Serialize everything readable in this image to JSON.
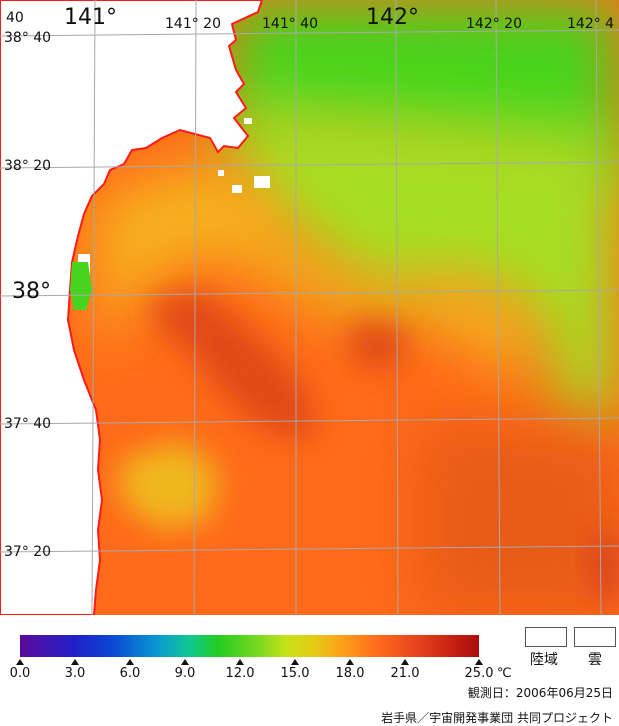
{
  "map": {
    "lon_labels": [
      {
        "text": "141°"
      },
      {
        "text": "141° 20"
      },
      {
        "text": "141° 40"
      },
      {
        "text": "142°"
      },
      {
        "text": "142° 20"
      },
      {
        "text": "142° 4"
      }
    ],
    "lat_labels": [
      {
        "text": "38° 40"
      },
      {
        "text": "38° 20"
      },
      {
        "text": "38°"
      },
      {
        "text": "37° 40"
      },
      {
        "text": "37° 20"
      }
    ],
    "corner_label": "40",
    "colors": {
      "land": "#ffffff",
      "coast": "#ff1a1a",
      "grid": "#a8a8a8",
      "warm": "#ff6a1a",
      "hot": "#e04a14",
      "mid": "#f6b41a",
      "cool": "#a6de24",
      "cold": "#46d41e"
    }
  },
  "legend": {
    "ticks": [
      "0.0",
      "3.0",
      "6.0",
      "9.0",
      "12.0",
      "15.0",
      "18.0",
      "21.0",
      "25.0"
    ],
    "unit": "℃",
    "land_label": "陸域",
    "cloud_label": "雲",
    "date_text": "観測日：2006年06月25日",
    "credit_text": "岩手県／宇宙開発事業団 共同プロジェクト"
  }
}
